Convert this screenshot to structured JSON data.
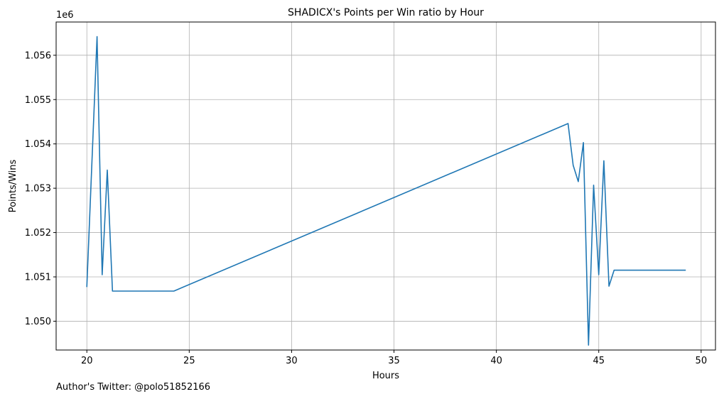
{
  "chart_data": {
    "type": "line",
    "title": "SHADICX's Points per Win ratio by Hour",
    "xlabel": "Hours",
    "ylabel": "Points/Wins",
    "y_offset_label": "1e6",
    "xlim": [
      18.5,
      50.7
    ],
    "ylim": [
      1.04935,
      1.05675
    ],
    "x_ticks": [
      20,
      25,
      30,
      35,
      40,
      45,
      50
    ],
    "y_ticks": [
      1.05,
      1.051,
      1.052,
      1.053,
      1.054,
      1.055,
      1.056
    ],
    "x_tick_labels": [
      "20",
      "25",
      "30",
      "35",
      "40",
      "45",
      "50"
    ],
    "y_tick_labels": [
      "1.050",
      "1.051",
      "1.052",
      "1.053",
      "1.054",
      "1.055",
      "1.056"
    ],
    "grid": true,
    "series": [
      {
        "color": "#1f77b4",
        "x": [
          20.0,
          20.5,
          20.75,
          21.0,
          21.25,
          24.25,
          43.5,
          43.75,
          44.0,
          44.25,
          44.5,
          44.75,
          45.0,
          45.25,
          45.5,
          45.75,
          49.25
        ],
        "y": [
          1.05077,
          1.05642,
          1.05105,
          1.05341,
          1.05068,
          1.05068,
          1.05446,
          1.05352,
          1.05315,
          1.05403,
          1.04946,
          1.05307,
          1.05105,
          1.05362,
          1.05079,
          1.05115,
          1.05115
        ]
      }
    ]
  },
  "footer": {
    "author_note": "Author's Twitter: @polo51852166"
  }
}
